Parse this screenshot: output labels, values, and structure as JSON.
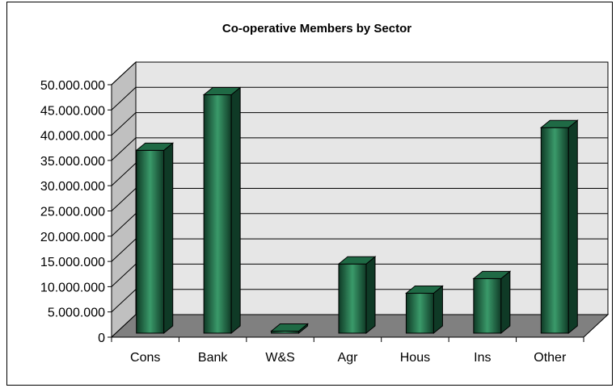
{
  "chart_data": {
    "type": "bar",
    "title": "Co-operative Members by Sector",
    "categories": [
      "Cons",
      "Bank",
      "W&S",
      "Agr",
      "Hous",
      "Ins",
      "Other"
    ],
    "values": [
      37000000,
      48000000,
      1200000,
      14500000,
      8700000,
      11600000,
      41500000
    ],
    "y_ticks": [
      "0",
      "5.000.000",
      "10.000.000",
      "15.000.000",
      "20.000.000",
      "25.000.000",
      "30.000.000",
      "35.000.000",
      "40.000.000",
      "45.000.000",
      "50.000.000"
    ],
    "ylim": [
      0,
      50000000
    ],
    "grid": true,
    "style": "3d-column",
    "colors": {
      "bar_light": "#3a9a6a",
      "bar_dark": "#0f3a26",
      "bar_mid": "#1f6a45",
      "floor": "#808080",
      "wall": "#e6e6e6"
    }
  }
}
